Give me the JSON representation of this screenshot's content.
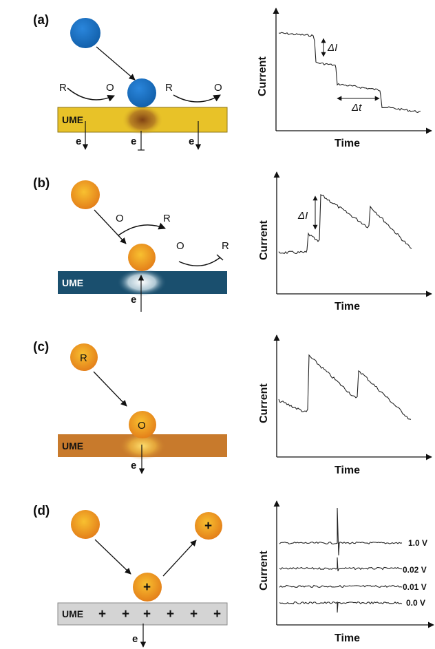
{
  "panels": [
    {
      "label": "(a)",
      "electrode": "UME",
      "species": [
        "R",
        "O",
        "R",
        "O"
      ],
      "electrons": [
        "e",
        "e",
        "e"
      ],
      "colors": {
        "particle": "#1a6fc4",
        "electrode": "#e8c228"
      },
      "chart": {
        "xlabel": "Time",
        "ylabel": "Current",
        "annotations": [
          "ΔI",
          "Δt"
        ]
      }
    },
    {
      "label": "(b)",
      "electrode": "UME",
      "species": [
        "O",
        "R",
        "O",
        "R"
      ],
      "electrons": [
        "e"
      ],
      "colors": {
        "particle": "#f0a020",
        "electrode": "#1a4f6e"
      },
      "chart": {
        "xlabel": "Time",
        "ylabel": "Current",
        "annotations": [
          "ΔI"
        ]
      }
    },
    {
      "label": "(c)",
      "electrode": "UME",
      "species": [
        "R",
        "O"
      ],
      "electrons": [
        "e"
      ],
      "colors": {
        "particle": "#f0a020",
        "electrode": "#c87a2c"
      },
      "chart": {
        "xlabel": "Time",
        "ylabel": "Current"
      }
    },
    {
      "label": "(d)",
      "electrode": "UME",
      "charges": [
        "+",
        "+",
        "+",
        "+",
        "+",
        "+"
      ],
      "particle_charge": "+",
      "electrons": [
        "e"
      ],
      "colors": {
        "particle": "#f0a020",
        "electrode": "#d4d4d4"
      },
      "chart": {
        "xlabel": "Time",
        "ylabel": "Current",
        "voltages": [
          "1.0 V",
          "0.02 V",
          "0.01 V",
          "0.0 V"
        ]
      }
    }
  ]
}
